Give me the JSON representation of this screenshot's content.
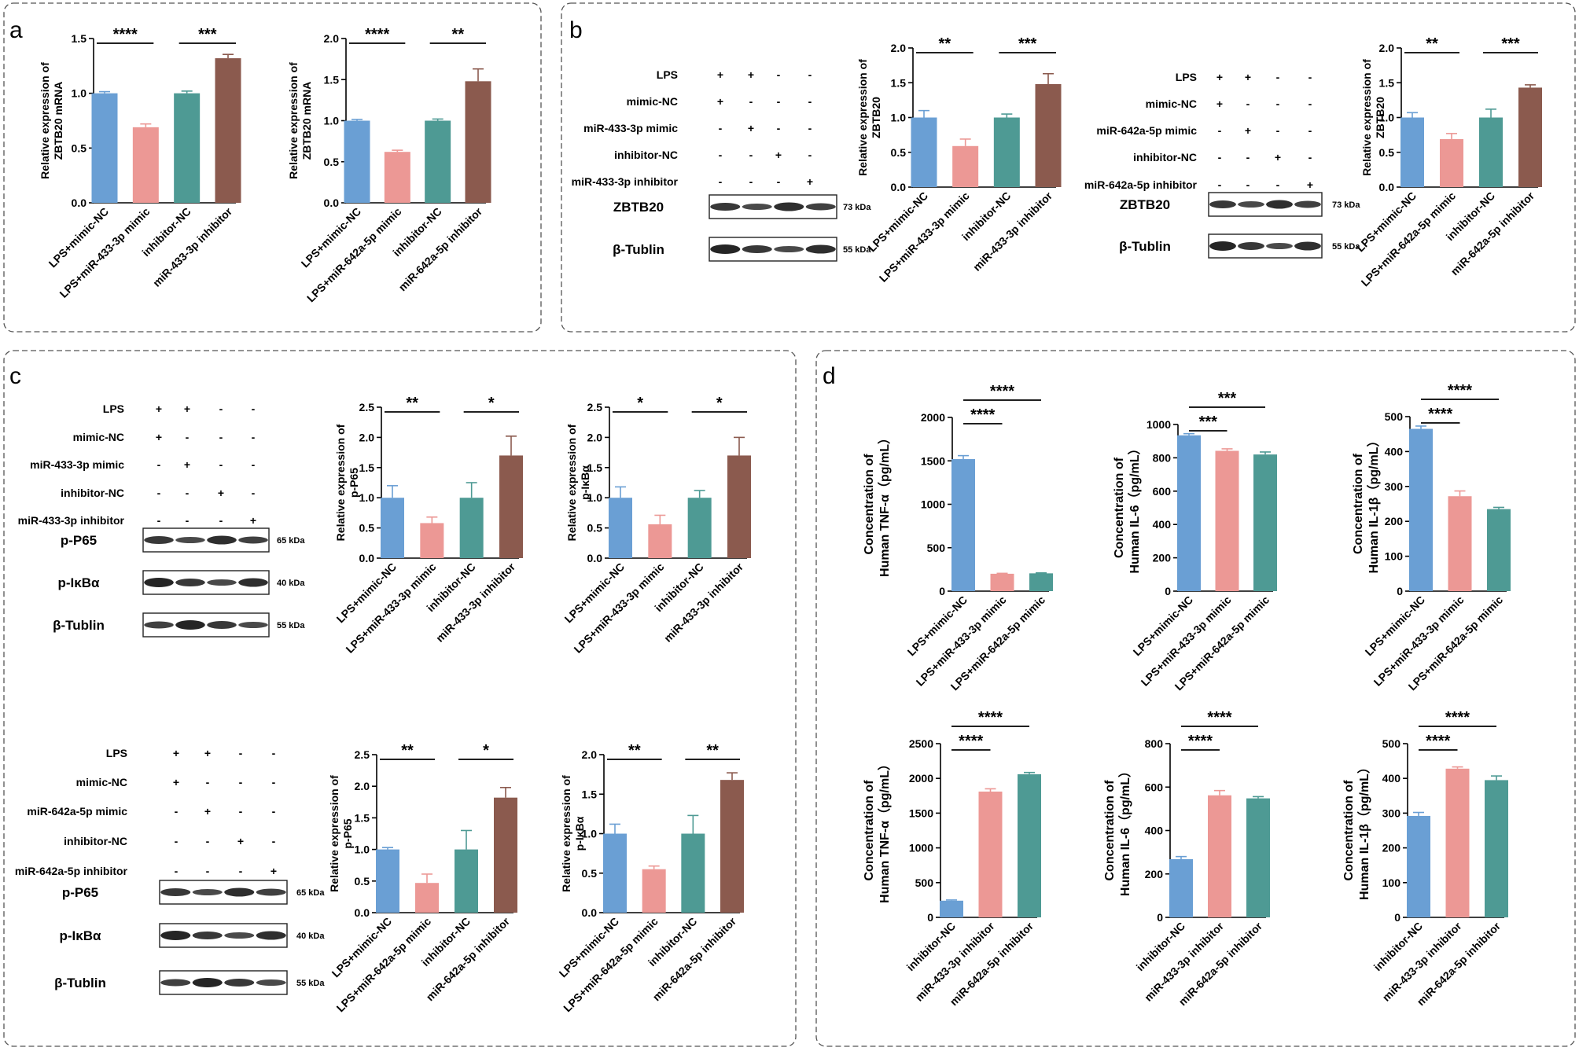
{
  "panels": {
    "a": "a",
    "b": "b",
    "c": "c",
    "d": "d"
  },
  "colors": [
    "#6a9fd4",
    "#ec9895",
    "#4e9a94",
    "#8b5a4e"
  ],
  "blot_tables": {
    "b1": {
      "rows": [
        {
          "label": "LPS",
          "signs": [
            "+",
            "+",
            "-",
            "-"
          ]
        },
        {
          "label": "mimic-NC",
          "signs": [
            "+",
            "-",
            "-",
            "-"
          ]
        },
        {
          "label": "miR-433-3p mimic",
          "signs": [
            "-",
            "+",
            "-",
            "-"
          ]
        },
        {
          "label": "inhibitor-NC",
          "signs": [
            "-",
            "-",
            "+",
            "-"
          ]
        },
        {
          "label": "miR-433-3p inhibitor",
          "signs": [
            "-",
            "-",
            "-",
            "+"
          ]
        }
      ],
      "blots": [
        {
          "name": "ZBTB20",
          "kda": "73 kDa"
        },
        {
          "name": "β-Tublin",
          "kda": "55 kDa"
        }
      ]
    },
    "b2": {
      "rows": [
        {
          "label": "LPS",
          "signs": [
            "+",
            "+",
            "-",
            "-"
          ]
        },
        {
          "label": "mimic-NC",
          "signs": [
            "+",
            "-",
            "-",
            "-"
          ]
        },
        {
          "label": "miR-642a-5p mimic",
          "signs": [
            "-",
            "+",
            "-",
            "-"
          ]
        },
        {
          "label": "inhibitor-NC",
          "signs": [
            "-",
            "-",
            "+",
            "-"
          ]
        },
        {
          "label": "miR-642a-5p inhibitor",
          "signs": [
            "-",
            "-",
            "-",
            "+"
          ]
        }
      ],
      "blots": [
        {
          "name": "ZBTB20",
          "kda": "73 kDa"
        },
        {
          "name": "β-Tublin",
          "kda": "55 kDa"
        }
      ]
    },
    "c1": {
      "rows": [
        {
          "label": "LPS",
          "signs": [
            "+",
            "+",
            "-",
            "-"
          ]
        },
        {
          "label": "mimic-NC",
          "signs": [
            "+",
            "-",
            "-",
            "-"
          ]
        },
        {
          "label": "miR-433-3p mimic",
          "signs": [
            "-",
            "+",
            "-",
            "-"
          ]
        },
        {
          "label": "inhibitor-NC",
          "signs": [
            "-",
            "-",
            "+",
            "-"
          ]
        },
        {
          "label": "miR-433-3p inhibitor",
          "signs": [
            "-",
            "-",
            "-",
            "+"
          ]
        }
      ],
      "blots": [
        {
          "name": "p-P65",
          "kda": "65 kDa"
        },
        {
          "name": "p-IκBα",
          "kda": "40 kDa"
        },
        {
          "name": "β-Tublin",
          "kda": "55 kDa"
        }
      ]
    },
    "c2": {
      "rows": [
        {
          "label": "LPS",
          "signs": [
            "+",
            "+",
            "-",
            "-"
          ]
        },
        {
          "label": "mimic-NC",
          "signs": [
            "+",
            "-",
            "-",
            "-"
          ]
        },
        {
          "label": "miR-642a-5p mimic",
          "signs": [
            "-",
            "+",
            "-",
            "-"
          ]
        },
        {
          "label": "inhibitor-NC",
          "signs": [
            "-",
            "-",
            "+",
            "-"
          ]
        },
        {
          "label": "miR-642a-5p inhibitor",
          "signs": [
            "-",
            "-",
            "-",
            "+"
          ]
        }
      ],
      "blots": [
        {
          "name": "p-P65",
          "kda": "65 kDa"
        },
        {
          "name": "p-IκBα",
          "kda": "40 kDa"
        },
        {
          "name": "β-Tublin",
          "kda": "55 kDa"
        }
      ]
    }
  },
  "chart_data": [
    {
      "id": "a1",
      "type": "bar",
      "ylabel": [
        "Relative expression of",
        "ZBTB20 mRNA"
      ],
      "ylim": [
        0,
        1.5
      ],
      "yticks": [
        "0.0",
        "0.5",
        "1.0",
        "1.5"
      ],
      "categories": [
        "LPS+mimic-NC",
        "LPS+miR-433-3p mimic",
        "inhibitor-NC",
        "miR-433-3p inhibitor"
      ],
      "values": [
        1.0,
        0.69,
        1.0,
        1.32
      ],
      "errors": [
        0.015,
        0.03,
        0.02,
        0.035
      ],
      "significance": [
        {
          "pair": [
            0,
            1
          ],
          "label": "****"
        },
        {
          "pair": [
            2,
            3
          ],
          "label": "***"
        }
      ]
    },
    {
      "id": "a2",
      "type": "bar",
      "ylabel": [
        "Relative expression of",
        "ZBTB20 mRNA"
      ],
      "ylim": [
        0,
        2.0
      ],
      "yticks": [
        "0.0",
        "0.5",
        "1.0",
        "1.5",
        "2.0"
      ],
      "categories": [
        "LPS+mimic-NC",
        "LPS+miR-642a-5p mimic",
        "inhibitor-NC",
        "miR-642a-5p inhibitor"
      ],
      "values": [
        1.0,
        0.62,
        1.0,
        1.48
      ],
      "errors": [
        0.015,
        0.02,
        0.02,
        0.15
      ],
      "significance": [
        {
          "pair": [
            0,
            1
          ],
          "label": "****"
        },
        {
          "pair": [
            2,
            3
          ],
          "label": "**"
        }
      ]
    },
    {
      "id": "b1",
      "type": "bar",
      "ylabel": [
        "Relative expression of",
        "ZBTB20"
      ],
      "ylim": [
        0,
        2.0
      ],
      "yticks": [
        "0.0",
        "0.5",
        "1.0",
        "1.5",
        "2.0"
      ],
      "categories": [
        "LPS+mimic-NC",
        "LPS+miR-433-3p mimic",
        "inhibitor-NC",
        "miR-433-3p inhibitor"
      ],
      "values": [
        1.0,
        0.59,
        1.0,
        1.48
      ],
      "errors": [
        0.1,
        0.1,
        0.05,
        0.15
      ],
      "significance": [
        {
          "pair": [
            0,
            1
          ],
          "label": "**"
        },
        {
          "pair": [
            2,
            3
          ],
          "label": "***"
        }
      ]
    },
    {
      "id": "b2",
      "type": "bar",
      "ylabel": [
        "Relative expression of",
        "ZBTB20"
      ],
      "ylim": [
        0,
        2.0
      ],
      "yticks": [
        "0.0",
        "0.5",
        "1.0",
        "1.5",
        "2.0"
      ],
      "categories": [
        "LPS+mimic-NC",
        "LPS+miR-642a-5p mimic",
        "inhibitor-NC",
        "miR-642a-5p inhibitor"
      ],
      "values": [
        1.0,
        0.69,
        1.0,
        1.43
      ],
      "errors": [
        0.07,
        0.08,
        0.12,
        0.04
      ],
      "significance": [
        {
          "pair": [
            0,
            1
          ],
          "label": "**"
        },
        {
          "pair": [
            2,
            3
          ],
          "label": "***"
        }
      ]
    },
    {
      "id": "c1",
      "type": "bar",
      "ylabel": [
        "Relative expression of",
        "p-P65"
      ],
      "ylim": [
        0,
        2.5
      ],
      "yticks": [
        "0.0",
        "0.5",
        "1.0",
        "1.5",
        "2.0",
        "2.5"
      ],
      "categories": [
        "LPS+mimic-NC",
        "LPS+miR-433-3p mimic",
        "inhibitor-NC",
        "miR-433-3p inhibitor"
      ],
      "values": [
        1.0,
        0.58,
        1.0,
        1.7
      ],
      "errors": [
        0.2,
        0.1,
        0.25,
        0.32
      ],
      "significance": [
        {
          "pair": [
            0,
            1
          ],
          "label": "**"
        },
        {
          "pair": [
            2,
            3
          ],
          "label": "*"
        }
      ]
    },
    {
      "id": "c2",
      "type": "bar",
      "ylabel": [
        "Relative expression of",
        "p-IκBα"
      ],
      "ylim": [
        0,
        2.5
      ],
      "yticks": [
        "0.0",
        "0.5",
        "1.0",
        "1.5",
        "2.0",
        "2.5"
      ],
      "categories": [
        "LPS+mimic-NC",
        "LPS+miR-433-3p mimic",
        "inhibitor-NC",
        "miR-433-3p inhibitor"
      ],
      "values": [
        1.0,
        0.56,
        1.0,
        1.7
      ],
      "errors": [
        0.18,
        0.15,
        0.12,
        0.3
      ],
      "significance": [
        {
          "pair": [
            0,
            1
          ],
          "label": "*"
        },
        {
          "pair": [
            2,
            3
          ],
          "label": "*"
        }
      ]
    },
    {
      "id": "c3",
      "type": "bar",
      "ylabel": [
        "Relative expression of",
        "p-P65"
      ],
      "ylim": [
        0,
        2.5
      ],
      "yticks": [
        "0.0",
        "0.5",
        "1.0",
        "1.5",
        "2.0",
        "2.5"
      ],
      "categories": [
        "LPS+mimic-NC",
        "LPS+miR-642a-5p mimic",
        "inhibitor-NC",
        "miR-642a-5p inhibitor"
      ],
      "values": [
        1.0,
        0.47,
        1.0,
        1.82
      ],
      "errors": [
        0.03,
        0.14,
        0.3,
        0.16
      ],
      "significance": [
        {
          "pair": [
            0,
            1
          ],
          "label": "**"
        },
        {
          "pair": [
            2,
            3
          ],
          "label": "*"
        }
      ]
    },
    {
      "id": "c4",
      "type": "bar",
      "ylabel": [
        "Relative expression of",
        "p-IκBα"
      ],
      "ylim": [
        0,
        2.0
      ],
      "yticks": [
        "0.0",
        "0.5",
        "1.0",
        "1.5",
        "2.0"
      ],
      "categories": [
        "LPS+mimic-NC",
        "LPS+miR-642a-5p mimic",
        "inhibitor-NC",
        "miR-642a-5p inhibitor"
      ],
      "values": [
        1.0,
        0.55,
        1.0,
        1.68
      ],
      "errors": [
        0.12,
        0.04,
        0.23,
        0.09
      ],
      "significance": [
        {
          "pair": [
            0,
            1
          ],
          "label": "**"
        },
        {
          "pair": [
            2,
            3
          ],
          "label": "**"
        }
      ]
    },
    {
      "id": "d1",
      "type": "bar",
      "ylabel": [
        "Concentration of",
        "Human TNF-α（pg/mL）"
      ],
      "ylim": [
        0,
        2000
      ],
      "yticks": [
        "0",
        "500",
        "1000",
        "1500",
        "2000"
      ],
      "categories": [
        "LPS+mimic-NC",
        "LPS+miR-433-3p mimic",
        "LPS+miR-642a-5p mimic"
      ],
      "values": [
        1520,
        200,
        205
      ],
      "errors": [
        40,
        5,
        5
      ],
      "significance": [
        {
          "pair": [
            0,
            1
          ],
          "label": "****"
        },
        {
          "pair": [
            0,
            2
          ],
          "label": "****"
        }
      ]
    },
    {
      "id": "d2",
      "type": "bar",
      "ylabel": [
        "Concentration of",
        "Human IL-6（pg/mL）"
      ],
      "ylim": [
        0,
        1000
      ],
      "yticks": [
        "0",
        "200",
        "400",
        "600",
        "800",
        "1000"
      ],
      "categories": [
        "LPS+mimic-NC",
        "LPS+miR-433-3p mimic",
        "LPS+miR-642a-5p mimic"
      ],
      "values": [
        935,
        842,
        820
      ],
      "errors": [
        10,
        12,
        15
      ],
      "significance": [
        {
          "pair": [
            0,
            1
          ],
          "label": "***"
        },
        {
          "pair": [
            0,
            2
          ],
          "label": "***"
        }
      ]
    },
    {
      "id": "d3",
      "type": "bar",
      "ylabel": [
        "Concentration of",
        "Human IL-1β（pg/mL）"
      ],
      "ylim": [
        0,
        500
      ],
      "yticks": [
        "0",
        "100",
        "200",
        "300",
        "400",
        "500"
      ],
      "categories": [
        "LPS+mimic-NC",
        "LPS+miR-433-3p mimic",
        "LPS+miR-642a-5p mimic"
      ],
      "values": [
        465,
        272,
        235
      ],
      "errors": [
        8,
        15,
        5
      ],
      "significance": [
        {
          "pair": [
            0,
            1
          ],
          "label": "****"
        },
        {
          "pair": [
            0,
            2
          ],
          "label": "****"
        }
      ]
    },
    {
      "id": "d4",
      "type": "bar",
      "ylabel": [
        "Concentration of",
        "Human TNF-α（pg/mL）"
      ],
      "ylim": [
        0,
        2500
      ],
      "yticks": [
        "0",
        "500",
        "1000",
        "1500",
        "2000",
        "2500"
      ],
      "categories": [
        "inhibitor-NC",
        "miR-433-3p inhibitor",
        "miR-642a-5p inhibitor"
      ],
      "values": [
        240,
        1810,
        2060
      ],
      "errors": [
        10,
        40,
        25
      ],
      "significance": [
        {
          "pair": [
            0,
            1
          ],
          "label": "****"
        },
        {
          "pair": [
            0,
            2
          ],
          "label": "****"
        }
      ]
    },
    {
      "id": "d5",
      "type": "bar",
      "ylabel": [
        "Concentration of",
        "Human IL-6（pg/mL）"
      ],
      "ylim": [
        0,
        800
      ],
      "yticks": [
        "0",
        "200",
        "400",
        "600",
        "800"
      ],
      "categories": [
        "inhibitor-NC",
        "miR-433-3p inhibitor",
        "miR-642a-5p inhibitor"
      ],
      "values": [
        268,
        562,
        548
      ],
      "errors": [
        12,
        22,
        8
      ],
      "significance": [
        {
          "pair": [
            0,
            1
          ],
          "label": "****"
        },
        {
          "pair": [
            0,
            2
          ],
          "label": "****"
        }
      ]
    },
    {
      "id": "d6",
      "type": "bar",
      "ylabel": [
        "Concentration of",
        "Human IL-1β（pg/mL）"
      ],
      "ylim": [
        0,
        500
      ],
      "yticks": [
        "0",
        "100",
        "200",
        "300",
        "400",
        "500"
      ],
      "categories": [
        "inhibitor-NC",
        "miR-433-3p inhibitor",
        "miR-642a-5p inhibitor"
      ],
      "values": [
        292,
        428,
        395
      ],
      "errors": [
        10,
        5,
        12
      ],
      "significance": [
        {
          "pair": [
            0,
            1
          ],
          "label": "****"
        },
        {
          "pair": [
            0,
            2
          ],
          "label": "****"
        }
      ]
    }
  ]
}
